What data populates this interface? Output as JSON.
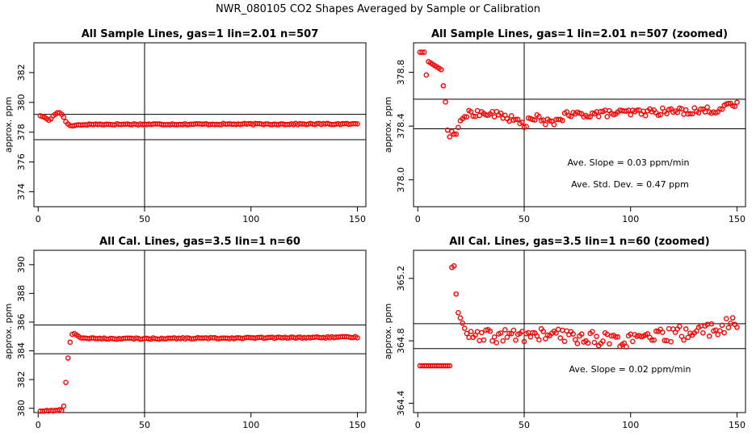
{
  "figure_title": "NWR_080105  CO2 Shapes Averaged by Sample or Calibration",
  "colors": {
    "points": "#ff0000",
    "axes": "#000000",
    "background": "#ffffff"
  },
  "chart_data": [
    {
      "type": "scatter",
      "title": "All Sample Lines, gas=1 lin=2.01 n=507",
      "ylabel": "approx. ppm",
      "xlim": [
        -2,
        154
      ],
      "ylim": [
        373.0,
        384.0
      ],
      "xticks": [
        0,
        50,
        100,
        150
      ],
      "yticks": [
        374,
        376,
        378,
        380,
        382
      ],
      "hlines": [
        379.2,
        377.5
      ],
      "vline": 50,
      "segments": [
        [
          1,
          379.1
        ],
        [
          2,
          379.05
        ],
        [
          3,
          379.0
        ],
        [
          4,
          378.9
        ],
        [
          5,
          378.8
        ],
        [
          6,
          378.9
        ],
        [
          7,
          379.1
        ],
        [
          8,
          379.2
        ],
        [
          9,
          379.3
        ],
        [
          10,
          379.3
        ],
        [
          11,
          379.2
        ],
        [
          12,
          379.0
        ],
        [
          13,
          378.7
        ],
        [
          14,
          378.55
        ],
        [
          15,
          378.45
        ],
        [
          16,
          378.42
        ],
        [
          17,
          378.45
        ],
        [
          19,
          378.5
        ],
        [
          20,
          378.48
        ],
        [
          22,
          378.5
        ],
        [
          25,
          378.53
        ],
        [
          150,
          378.55
        ]
      ],
      "annotations": []
    },
    {
      "type": "scatter",
      "title": "All Sample Lines, gas=1 lin=2.01 n=507 (zoomed)",
      "ylabel": "approx. ppm",
      "xlim": [
        -2,
        154
      ],
      "ylim": [
        377.8,
        379.02
      ],
      "xticks": [
        0,
        50,
        100,
        150
      ],
      "yticks": [
        378.0,
        378.4,
        378.8
      ],
      "hlines": [
        378.6,
        378.38
      ],
      "vline": 50,
      "segments": [
        [
          3,
          378.95
        ],
        [
          4,
          378.78
        ],
        [
          5,
          378.88
        ],
        [
          11,
          378.82
        ],
        [
          13,
          378.58
        ],
        [
          14,
          378.37
        ],
        [
          15,
          378.32
        ],
        [
          16,
          378.36
        ],
        [
          17,
          378.34
        ],
        [
          18,
          378.34
        ],
        [
          20,
          378.44
        ],
        [
          22,
          378.47
        ],
        [
          25,
          378.5
        ],
        [
          40,
          378.48
        ],
        [
          50,
          378.41
        ],
        [
          55,
          378.47
        ],
        [
          58,
          378.44
        ],
        [
          62,
          378.42
        ],
        [
          70,
          378.48
        ],
        [
          80,
          378.49
        ],
        [
          100,
          378.5
        ],
        [
          120,
          378.51
        ],
        [
          140,
          378.52
        ],
        [
          150,
          378.56
        ]
      ],
      "annotations": [
        "Ave. Slope =  0.03  ppm/min",
        "Ave. Std. Dev. =  0.47  ppm"
      ]
    },
    {
      "type": "scatter",
      "title": "All Cal. Lines, gas=3.5 lin=1 n=60",
      "ylabel": "approx. ppm",
      "xlim": [
        -2,
        154
      ],
      "ylim": [
        379.7,
        391.0
      ],
      "xticks": [
        0,
        50,
        100,
        150
      ],
      "yticks": [
        380,
        382,
        384,
        386,
        388,
        390
      ],
      "hlines": [
        385.8,
        383.8
      ],
      "vline": 50,
      "segments": [
        [
          1,
          379.8
        ],
        [
          2,
          379.8
        ],
        [
          3,
          379.8
        ],
        [
          4,
          379.85
        ],
        [
          5,
          379.8
        ],
        [
          6,
          379.85
        ],
        [
          7,
          379.82
        ],
        [
          8,
          379.85
        ],
        [
          9,
          379.85
        ],
        [
          10,
          379.9
        ],
        [
          11,
          379.85
        ],
        [
          12,
          380.15
        ],
        [
          13,
          381.8
        ],
        [
          14,
          383.5
        ],
        [
          15,
          384.6
        ],
        [
          16,
          385.15
        ],
        [
          17,
          385.2
        ],
        [
          18,
          385.1
        ],
        [
          20,
          384.9
        ],
        [
          30,
          384.85
        ],
        [
          50,
          384.85
        ],
        [
          150,
          384.95
        ]
      ],
      "annotations": []
    },
    {
      "type": "scatter",
      "title": "All Cal. Lines, gas=3.5 lin=1 n=60 (zoomed)",
      "ylabel": "approx. ppm",
      "xlim": [
        -2,
        154
      ],
      "ylim": [
        364.34,
        365.38
      ],
      "xticks": [
        0,
        50,
        100,
        150
      ],
      "yticks": [
        364.4,
        364.8,
        365.2
      ],
      "hlines": [
        364.91,
        364.75
      ],
      "vline": 50,
      "segments": [
        [
          15,
          364.64
        ],
        [
          16,
          365.27
        ],
        [
          17,
          365.28
        ],
        [
          18,
          365.1
        ],
        [
          19,
          364.98
        ],
        [
          22,
          364.88
        ],
        [
          25,
          364.82
        ],
        [
          40,
          364.83
        ],
        [
          60,
          364.84
        ],
        [
          100,
          364.8
        ],
        [
          120,
          364.84
        ],
        [
          140,
          364.88
        ],
        [
          150,
          364.91
        ]
      ],
      "annotations": [
        "Ave. Slope =  0.02  ppm/min"
      ]
    }
  ]
}
